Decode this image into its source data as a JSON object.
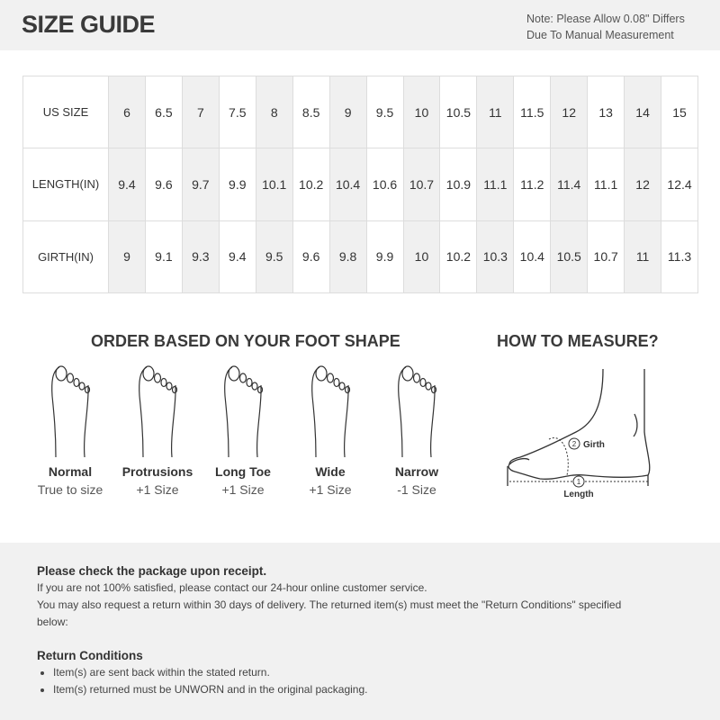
{
  "header": {
    "title": "SIZE GUIDE",
    "note_line1": "Note: Please Allow 0.08\" Differs",
    "note_line2": "Due To Manual Measurement"
  },
  "table": {
    "rows": [
      {
        "label": "US SIZE",
        "values": [
          "6",
          "6.5",
          "7",
          "7.5",
          "8",
          "8.5",
          "9",
          "9.5",
          "10",
          "10.5",
          "11",
          "11.5",
          "12",
          "13",
          "14",
          "15"
        ]
      },
      {
        "label": "LENGTH(IN)",
        "values": [
          "9.4",
          "9.6",
          "9.7",
          "9.9",
          "10.1",
          "10.2",
          "10.4",
          "10.6",
          "10.7",
          "10.9",
          "11.1",
          "11.2",
          "11.4",
          "11.1",
          "12",
          "12.4"
        ]
      },
      {
        "label": "GIRTH(IN)",
        "values": [
          "9",
          "9.1",
          "9.3",
          "9.4",
          "9.5",
          "9.6",
          "9.8",
          "9.9",
          "10",
          "10.2",
          "10.3",
          "10.4",
          "10.5",
          "10.7",
          "11",
          "11.3"
        ]
      }
    ]
  },
  "foot_shape": {
    "title": "ORDER BASED ON YOUR FOOT SHAPE",
    "items": [
      {
        "name": "Normal",
        "size": "True to size"
      },
      {
        "name": "Protrusions",
        "size": "+1 Size"
      },
      {
        "name": "Long Toe",
        "size": "+1 Size"
      },
      {
        "name": "Wide",
        "size": "+1 Size"
      },
      {
        "name": "Narrow",
        "size": "-1 Size"
      }
    ]
  },
  "measure": {
    "title": "HOW TO MEASURE?",
    "girth_num": "2",
    "girth": "Girth",
    "length_num": "1",
    "length": "Length"
  },
  "policy": {
    "heading": "Please check the package upon receipt.",
    "line1": "If you are not 100% satisfied, please contact our 24-hour online customer service.",
    "line2": "You may also request a return within 30 days of delivery. The returned item(s) must meet the \"Return Conditions\" specified below:",
    "conditions_heading": "Return Conditions",
    "conditions": [
      "Item(s) are sent back within the stated return.",
      "Item(s) returned must be UNWORN and in the original packaging."
    ]
  }
}
